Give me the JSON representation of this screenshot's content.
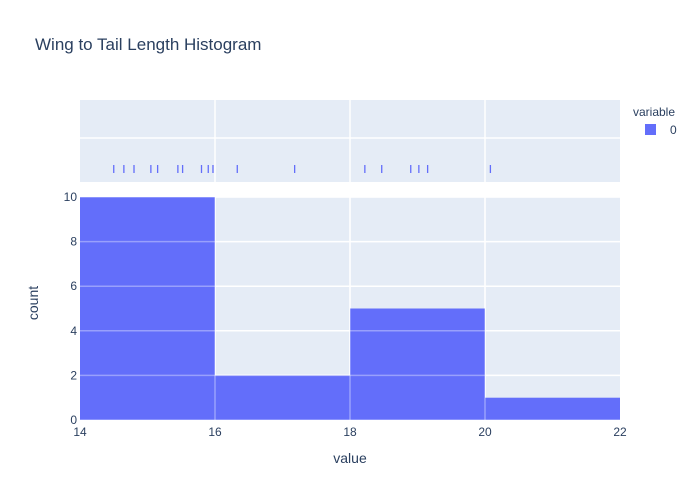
{
  "chart_data": {
    "type": "bar",
    "title": "Wing to Tail Length Histogram",
    "xlabel": "value",
    "ylabel": "count",
    "xlim": [
      14,
      22
    ],
    "ylim": [
      0,
      10
    ],
    "x_ticks": [
      14,
      16,
      18,
      20,
      22
    ],
    "y_ticks": [
      0,
      2,
      4,
      6,
      8,
      10
    ],
    "bins": [
      {
        "start": 14,
        "end": 16,
        "count": 10
      },
      {
        "start": 16,
        "end": 18,
        "count": 2
      },
      {
        "start": 18,
        "end": 20,
        "count": 5
      },
      {
        "start": 20,
        "end": 22,
        "count": 1
      }
    ],
    "rug_values": [
      14.5,
      14.65,
      14.8,
      15.05,
      15.15,
      15.45,
      15.52,
      15.8,
      15.9,
      15.97,
      16.33,
      17.18,
      18.22,
      18.47,
      18.9,
      19.02,
      19.15,
      20.08
    ],
    "legend": {
      "title": "variable",
      "entries": [
        "0"
      ]
    },
    "colors": {
      "bar": "#636efa",
      "plot_bg": "#e5ecf6",
      "grid": "#ffffff",
      "text": "#2a3f5f"
    },
    "grid": true
  }
}
